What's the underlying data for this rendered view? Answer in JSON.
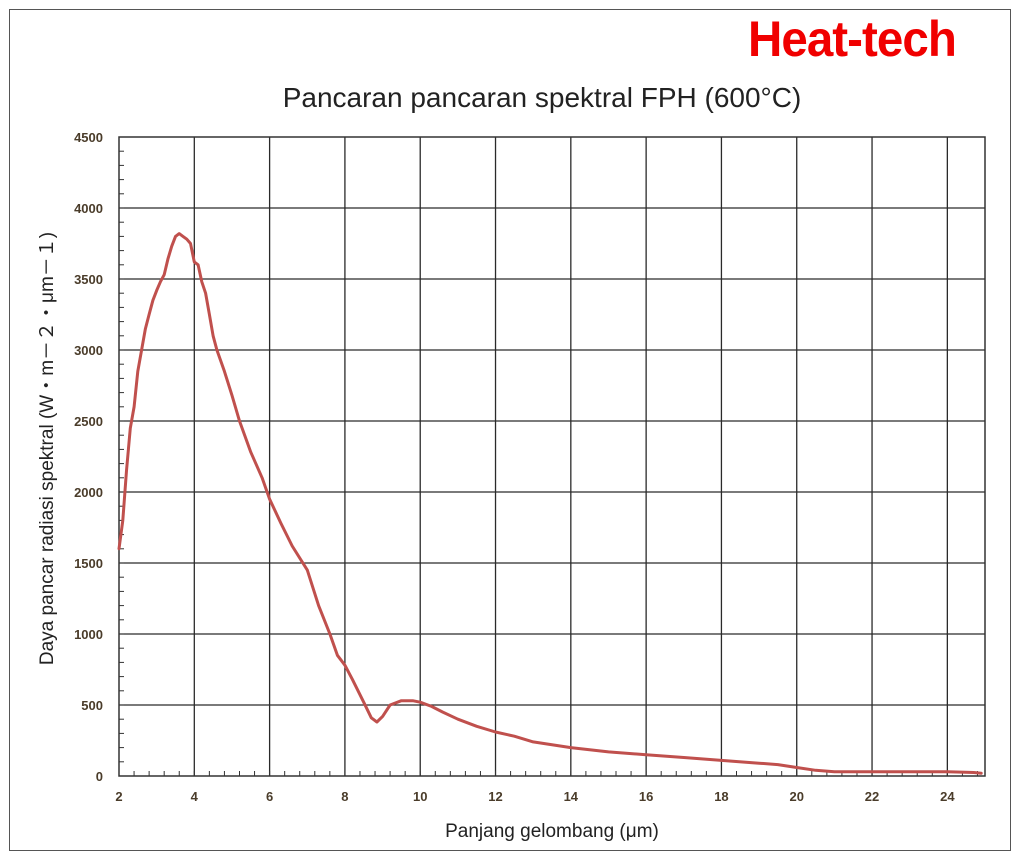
{
  "brand": {
    "logo_text": "Heat-tech",
    "color": "#f00000"
  },
  "chart_data": {
    "type": "line",
    "title": "Pancaran pancaran spektral FPH (600°C)",
    "xlabel": "Panjang gelombang (μm)",
    "ylabel": "Daya pancar radiasi spektral (W・m－２・μm－１)",
    "xlim": [
      2,
      25
    ],
    "ylim": [
      0,
      4500
    ],
    "xticks": [
      2,
      4,
      6,
      8,
      10,
      12,
      14,
      16,
      18,
      20,
      22,
      24
    ],
    "yticks": [
      0,
      500,
      1000,
      1500,
      2000,
      2500,
      3000,
      3500,
      4000,
      4500
    ],
    "grid": true,
    "legend": null,
    "line_color": "#c0504d",
    "series": [
      {
        "name": "FPH 600°C",
        "x": [
          2.0,
          2.1,
          2.2,
          2.3,
          2.4,
          2.5,
          2.6,
          2.7,
          2.8,
          2.9,
          3.0,
          3.1,
          3.2,
          3.3,
          3.4,
          3.5,
          3.6,
          3.7,
          3.8,
          3.9,
          4.0,
          4.1,
          4.2,
          4.3,
          4.4,
          4.5,
          4.6,
          4.8,
          5.0,
          5.2,
          5.5,
          5.8,
          6.0,
          6.3,
          6.6,
          7.0,
          7.3,
          7.6,
          7.8,
          8.0,
          8.2,
          8.5,
          8.7,
          8.85,
          9.0,
          9.2,
          9.5,
          9.8,
          10.0,
          10.3,
          10.6,
          11.0,
          11.5,
          12.0,
          12.5,
          13.0,
          14.0,
          15.0,
          16.0,
          17.0,
          18.0,
          19.0,
          19.5,
          20.0,
          20.5,
          21.0,
          22.0,
          23.0,
          24.0,
          24.7,
          24.9
        ],
        "y": [
          1600,
          1800,
          2150,
          2450,
          2600,
          2850,
          3000,
          3150,
          3250,
          3350,
          3420,
          3480,
          3530,
          3640,
          3730,
          3800,
          3820,
          3800,
          3780,
          3750,
          3620,
          3600,
          3480,
          3400,
          3250,
          3100,
          3000,
          2850,
          2680,
          2500,
          2280,
          2100,
          1950,
          1780,
          1620,
          1450,
          1200,
          1000,
          850,
          780,
          680,
          520,
          410,
          380,
          420,
          500,
          530,
          530,
          520,
          490,
          450,
          400,
          350,
          310,
          280,
          240,
          200,
          170,
          150,
          130,
          110,
          90,
          80,
          60,
          40,
          30,
          30,
          30,
          30,
          25,
          20
        ]
      }
    ]
  }
}
